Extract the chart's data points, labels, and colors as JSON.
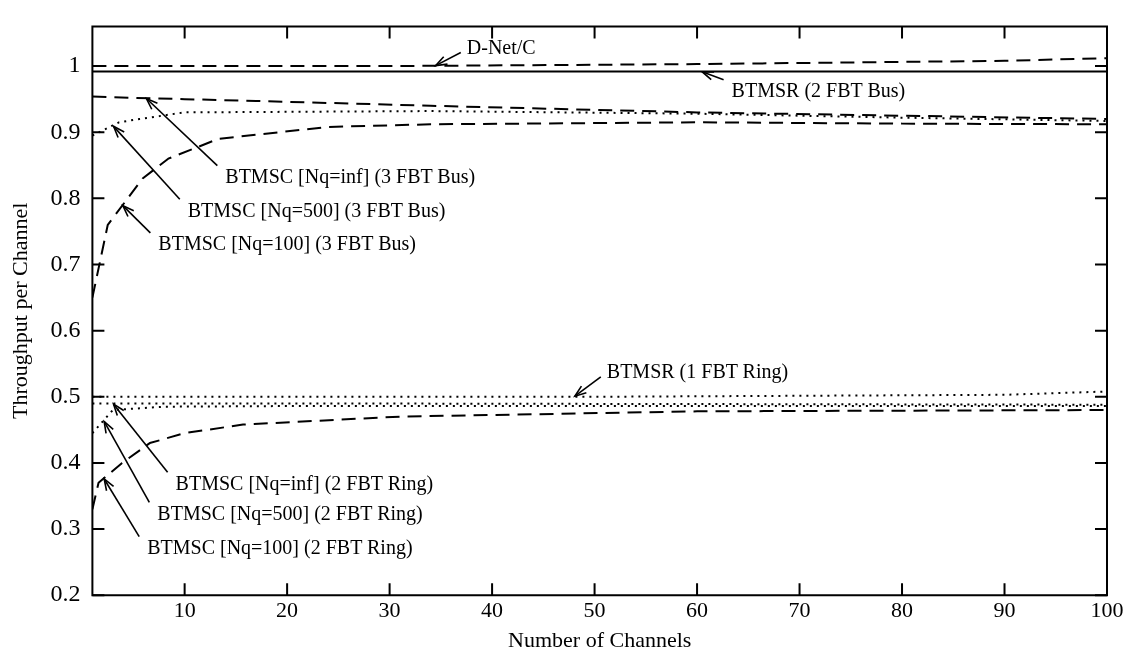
{
  "chart_data": {
    "type": "line",
    "xlabel": "Number of Channels",
    "ylabel": "Throughput per Channel",
    "xlim": [
      1,
      100
    ],
    "xticks": [
      10,
      20,
      30,
      40,
      50,
      60,
      70,
      80,
      90,
      100
    ],
    "ylim": [
      0.2,
      1.06
    ],
    "yticks": [
      0.2,
      0.3,
      0.4,
      0.5,
      0.6,
      0.7,
      0.8,
      0.9,
      1
    ],
    "grid": false,
    "legend": false,
    "marker": "none",
    "series": [
      {
        "color": "#000000",
        "line_style": "dashed",
        "x": [
          1,
          30,
          60,
          90,
          100
        ],
        "values": [
          1.0,
          1.0,
          1.003,
          1.008,
          1.012
        ]
      },
      {
        "color": "#000000",
        "line_style": "solid",
        "x": [
          1,
          100
        ],
        "values": [
          0.992,
          0.992
        ]
      },
      {
        "color": "#000000",
        "line_style": "dashed",
        "x": [
          1,
          5,
          10,
          20,
          34,
          60,
          80,
          100
        ],
        "values": [
          0.954,
          0.952,
          0.95,
          0.946,
          0.94,
          0.93,
          0.925,
          0.92
        ]
      },
      {
        "color": "#000000",
        "line_style": "dotted",
        "x": [
          1,
          3.6,
          5.6,
          10,
          34,
          60,
          80,
          100
        ],
        "values": [
          0.895,
          0.915,
          0.92,
          0.93,
          0.932,
          0.928,
          0.922,
          0.917
        ]
      },
      {
        "color": "#000000",
        "line_style": "dashed",
        "x": [
          1,
          2.5,
          5.9,
          8.4,
          13.3,
          24,
          34,
          60,
          80,
          100
        ],
        "values": [
          0.65,
          0.76,
          0.83,
          0.86,
          0.89,
          0.908,
          0.912,
          0.915,
          0.913,
          0.912
        ]
      },
      {
        "color": "#000000",
        "line_style": "dotted",
        "x": [
          1,
          50,
          90,
          100
        ],
        "values": [
          0.5,
          0.5,
          0.503,
          0.508
        ]
      },
      {
        "color": "#000000",
        "line_style": "dotted",
        "x": [
          1,
          20,
          60,
          100
        ],
        "values": [
          0.49,
          0.49,
          0.489,
          0.488
        ]
      },
      {
        "color": "#000000",
        "line_style": "dotted",
        "x": [
          1,
          3,
          8,
          20,
          60,
          100
        ],
        "values": [
          0.445,
          0.48,
          0.485,
          0.486,
          0.486,
          0.486
        ]
      },
      {
        "color": "#000000",
        "line_style": "dashed",
        "x": [
          1,
          1.6,
          3.9,
          6.6,
          10,
          15.7,
          20.8,
          31,
          60,
          100
        ],
        "values": [
          0.33,
          0.37,
          0.4,
          0.43,
          0.445,
          0.458,
          0.462,
          0.47,
          0.478,
          0.48
        ]
      }
    ],
    "annotations": [
      {
        "text": "D-Net/C",
        "x": 34.4,
        "y": 1.0
      },
      {
        "text": "BTMSR (2 FBT Bus)",
        "x": 60.4,
        "y": 0.992
      },
      {
        "text": "BTMSC [Nq=inf] (3 FBT Bus)",
        "x": 6.2,
        "y": 0.952
      },
      {
        "text": "BTMSC [Nq=500] (3 FBT Bus)",
        "x": 3,
        "y": 0.91
      },
      {
        "text": "BTMSC [Nq=100] (3 FBT Bus)",
        "x": 3.9,
        "y": 0.79
      },
      {
        "text": "BTMSR (1 FBT Ring)",
        "x": 48,
        "y": 0.5
      },
      {
        "text": "BTMSC [Nq=inf] (2 FBT Ring)",
        "x": 3,
        "y": 0.49
      },
      {
        "text": "BTMSC [Nq=500] (2 FBT Ring)",
        "x": 2.1,
        "y": 0.464
      },
      {
        "text": "BTMSC [Nq=100] (2 FBT Ring)",
        "x": 2.1,
        "y": 0.377
      }
    ]
  }
}
